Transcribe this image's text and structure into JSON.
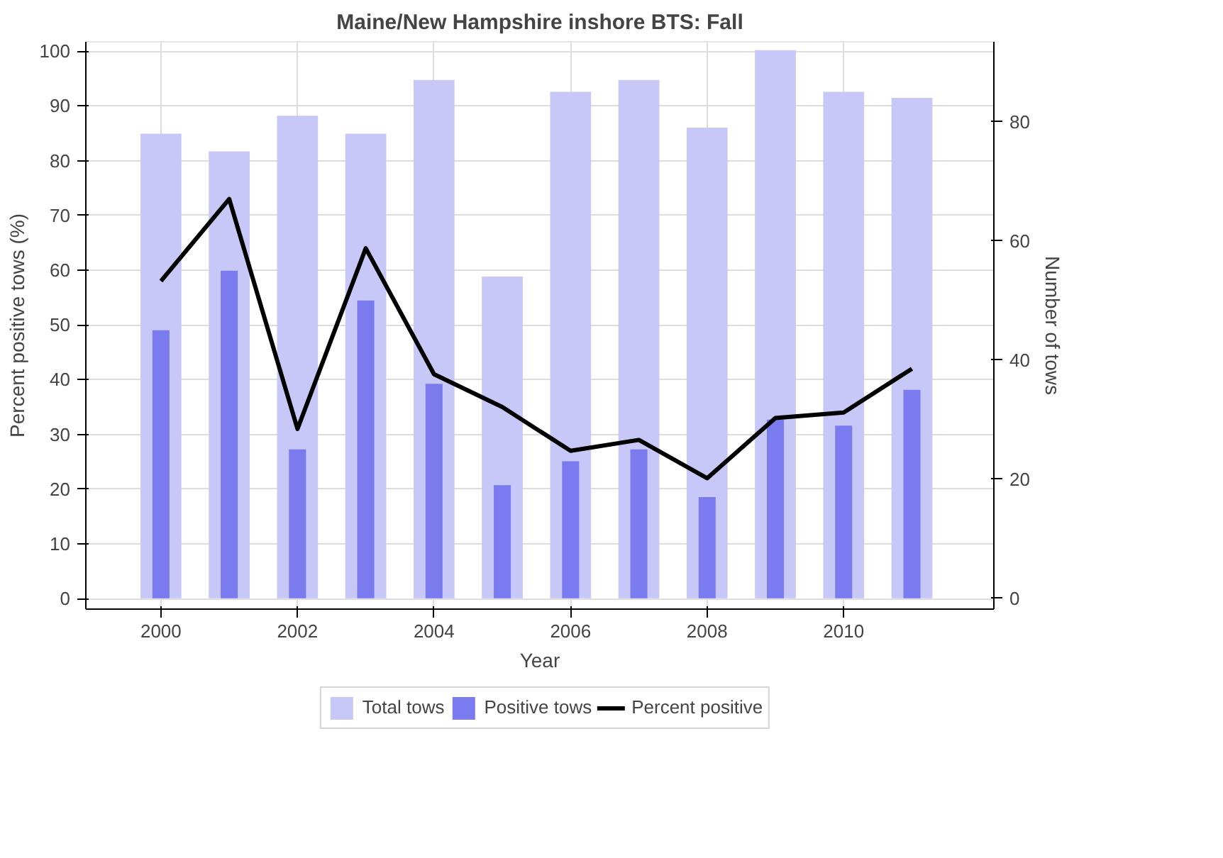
{
  "chart_data": {
    "type": "bar",
    "title": "Maine/New Hampshire inshore BTS: Fall",
    "xlabel": "Year",
    "ylabel": "Percent positive tows (%)",
    "y2label": "Number of tows",
    "x": [
      2000,
      2001,
      2002,
      2003,
      2004,
      2005,
      2006,
      2007,
      2008,
      2009,
      2010,
      2011
    ],
    "xlim": [
      1998.9,
      2012.2
    ],
    "xticks": [
      2000,
      2002,
      2004,
      2006,
      2008,
      2010
    ],
    "ylim": [
      -1.9,
      101.7
    ],
    "yticks": [
      0,
      10,
      20,
      30,
      40,
      50,
      60,
      70,
      80,
      90,
      100
    ],
    "y2lim": [
      -1.8,
      93.4
    ],
    "y2ticks": [
      0,
      20,
      40,
      60,
      80
    ],
    "grid": true,
    "legend": "bottom",
    "series": [
      {
        "name": "Total tows",
        "axis": "y2",
        "color": "#c8c8f8",
        "values": [
          78,
          75,
          81,
          78,
          87,
          54,
          85,
          87,
          79,
          92,
          85,
          84
        ]
      },
      {
        "name": "Positive tows",
        "axis": "y2",
        "color": "#7b7bf0",
        "values": [
          45,
          55,
          25,
          50,
          36,
          19,
          23,
          25,
          17,
          30,
          29,
          35
        ]
      },
      {
        "name": "Percent positive",
        "type": "line",
        "color": "#000000",
        "values": [
          58,
          73,
          31,
          64,
          41,
          35,
          27,
          29,
          22,
          33,
          34,
          42
        ]
      }
    ]
  }
}
